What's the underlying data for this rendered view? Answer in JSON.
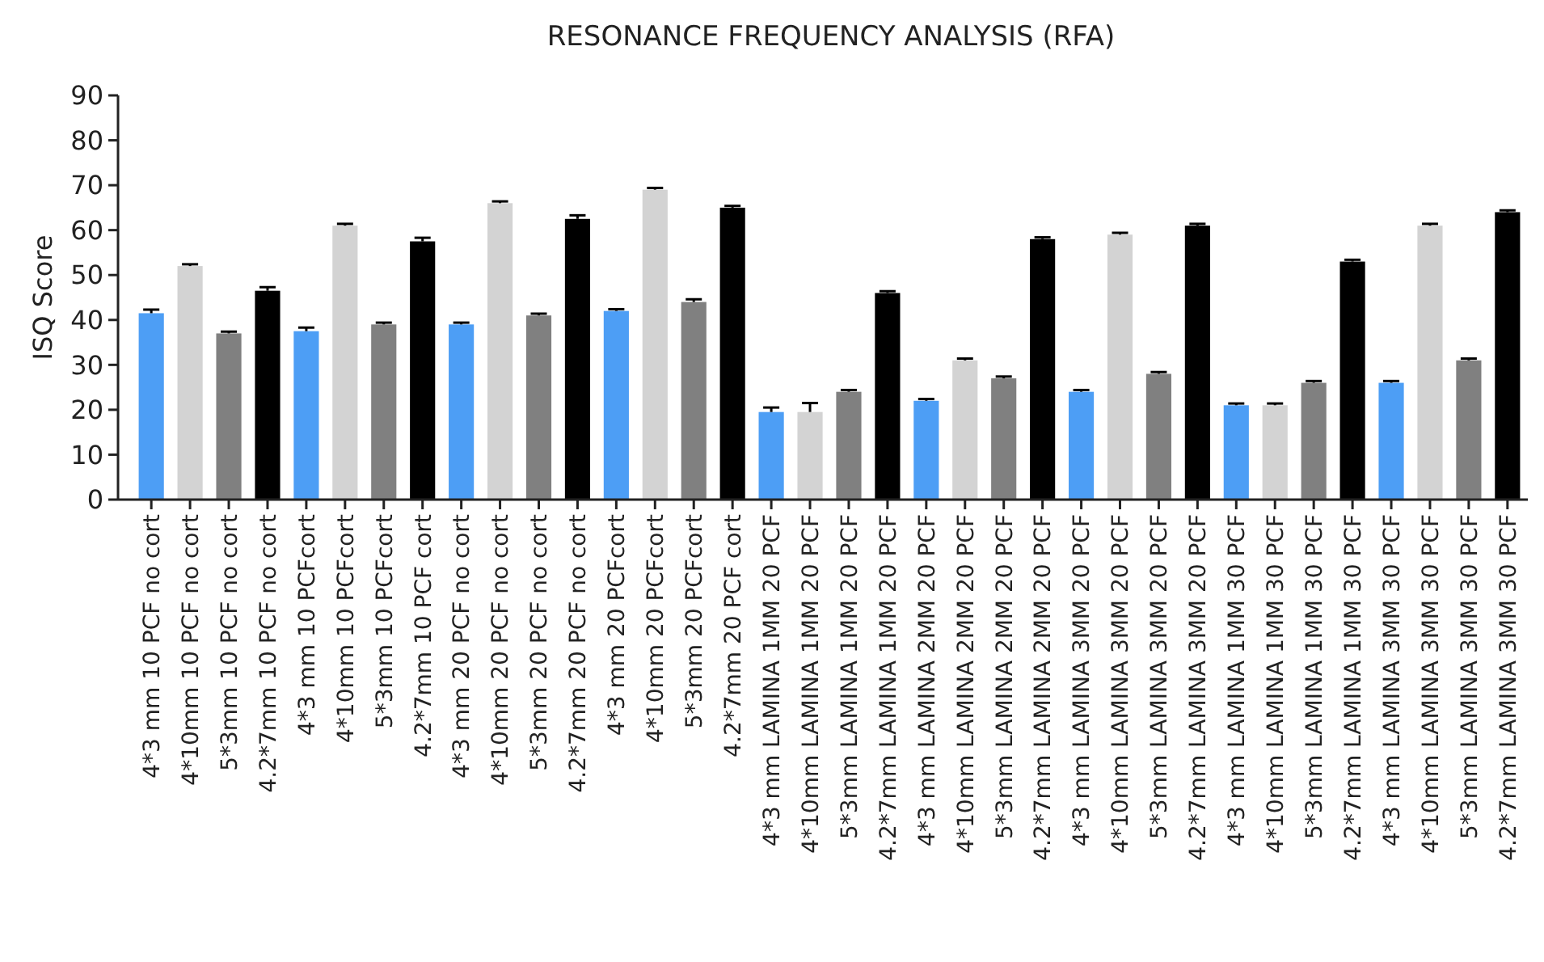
{
  "chart_data": {
    "type": "bar",
    "title": "RESONANCE FREQUENCY ANALYSIS (RFA)",
    "ylabel": "ISQ Score",
    "categories": [
      "4*3 mm 10 PCF no cort",
      "4*10mm 10 PCF no cort",
      "5*3mm 10 PCF no cort",
      "4.2*7mm 10 PCF no cort",
      "4*3 mm 10 PCFcort",
      "4*10mm 10 PCFcort",
      "5*3mm 10 PCFcort",
      "4.2*7mm 10 PCF cort",
      "4*3 mm 20 PCF no cort",
      "4*10mm 20 PCF no cort",
      "5*3mm 20 PCF no cort",
      "4.2*7mm 20 PCF no cort",
      "4*3 mm 20 PCFcort",
      "4*10mm 20 PCFcort",
      "5*3mm 20 PCFcort",
      "4.2*7mm 20 PCF cort",
      "4*3 mm LAMINA 1MM 20 PCF",
      "4*10mm LAMINA 1MM 20 PCF",
      "5*3mm LAMINA 1MM 20 PCF",
      "4.2*7mm LAMINA 1MM 20 PCF",
      "4*3 mm LAMINA 2MM 20 PCF",
      "4*10mm LAMINA 2MM 20 PCF",
      "5*3mm LAMINA 2MM 20 PCF",
      "4.2*7mm LAMINA 2MM 20 PCF",
      "4*3 mm LAMINA 3MM 20 PCF",
      "4*10mm LAMINA 3MM 20 PCF",
      "5*3mm LAMINA 3MM 20 PCF",
      "4.2*7mm LAMINA 3MM 20 PCF",
      "4*3 mm LAMINA 1MM 30 PCF",
      "4*10mm LAMINA 1MM 30 PCF",
      "5*3mm LAMINA 1MM 30 PCF",
      "4.2*7mm LAMINA 1MM 30 PCF",
      "4*3 mm LAMINA 3MM 30 PCF",
      "4*10mm LAMINA 3MM 30 PCF",
      "5*3mm LAMINA 3MM 30 PCF",
      "4.2*7mm LAMINA 3MM 30 PCF"
    ],
    "values": [
      41.5,
      52,
      37,
      46.5,
      37.5,
      61,
      39,
      57.5,
      39,
      66,
      41,
      62.5,
      42,
      69,
      44,
      65,
      19.5,
      19.5,
      24,
      46,
      22,
      31,
      27,
      58,
      24,
      59,
      28,
      61,
      21,
      21,
      26,
      53,
      26,
      61,
      31,
      64
    ],
    "errors": [
      0.8,
      0.4,
      0.4,
      0.8,
      0.8,
      0.4,
      0.4,
      0.8,
      0.4,
      0.4,
      0.4,
      0.8,
      0.4,
      0.4,
      0.6,
      0.4,
      1,
      2,
      0.4,
      0.4,
      0.4,
      0.4,
      0.4,
      0.4,
      0.4,
      0.4,
      0.4,
      0.4,
      0.4,
      0.4,
      0.4,
      0.4,
      0.4,
      0.4,
      0.4,
      0.4
    ],
    "colors": [
      "#4d9ef5",
      "#d3d3d3",
      "#808080",
      "#000000",
      "#4d9ef5",
      "#d3d3d3",
      "#808080",
      "#000000",
      "#4d9ef5",
      "#d3d3d3",
      "#808080",
      "#000000",
      "#4d9ef5",
      "#d3d3d3",
      "#808080",
      "#000000",
      "#4d9ef5",
      "#d3d3d3",
      "#808080",
      "#000000",
      "#4d9ef5",
      "#d3d3d3",
      "#808080",
      "#000000",
      "#4d9ef5",
      "#d3d3d3",
      "#808080",
      "#000000",
      "#4d9ef5",
      "#d3d3d3",
      "#808080",
      "#000000",
      "#4d9ef5",
      "#d3d3d3",
      "#808080",
      "#000000"
    ],
    "ylim": [
      0,
      90
    ],
    "yticks": [
      0,
      10,
      20,
      30,
      40,
      50,
      60,
      70,
      80,
      90
    ],
    "grid": false
  }
}
